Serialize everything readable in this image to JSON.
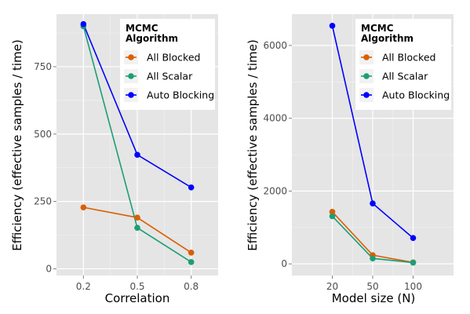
{
  "chart_data": [
    {
      "type": "line",
      "xlabel": "Correlation",
      "ylabel": "Efficiency (effective samples / time)",
      "x": [
        0.2,
        0.5,
        0.8
      ],
      "x_tick_labels": [
        "0.2",
        "0.5",
        "0.8"
      ],
      "xlim": [
        0.05,
        0.95
      ],
      "ylim": [
        -25,
        945
      ],
      "y_ticks": [
        0,
        250,
        500,
        750
      ],
      "y_tick_labels": [
        "0",
        "250",
        "500",
        "750"
      ],
      "grid": true,
      "legend": {
        "title_line1": "MCMC",
        "title_line2": "Algorithm",
        "placement": "top-right"
      },
      "series": [
        {
          "name": "All Blocked",
          "color": "#D95F02",
          "values": [
            228,
            190,
            60
          ]
        },
        {
          "name": "All Scalar",
          "color": "#1B9E77",
          "values": [
            900,
            152,
            25
          ]
        },
        {
          "name": "Auto Blocking",
          "color": "#0000FF",
          "values": [
            908,
            423,
            302
          ]
        }
      ]
    },
    {
      "type": "line",
      "xlabel": "Model size (N)",
      "ylabel": "Efficiency (effective samples / time)",
      "x": [
        20,
        50,
        100
      ],
      "x_tick_labels": [
        "20",
        "50",
        "100"
      ],
      "x_scale": "categorical",
      "ylim": [
        -320,
        6860
      ],
      "y_ticks": [
        0,
        2000,
        4000,
        6000
      ],
      "y_tick_labels": [
        "0",
        "2000",
        "4000",
        "6000"
      ],
      "grid": true,
      "legend": {
        "title_line1": "MCMC",
        "title_line2": "Algorithm",
        "placement": "top-right"
      },
      "series": [
        {
          "name": "All Blocked",
          "color": "#D95F02",
          "values": [
            1430,
            240,
            40
          ]
        },
        {
          "name": "All Scalar",
          "color": "#1B9E77",
          "values": [
            1310,
            150,
            35
          ]
        },
        {
          "name": "Auto Blocking",
          "color": "#0000FF",
          "values": [
            6540,
            1660,
            710
          ]
        }
      ]
    }
  ]
}
